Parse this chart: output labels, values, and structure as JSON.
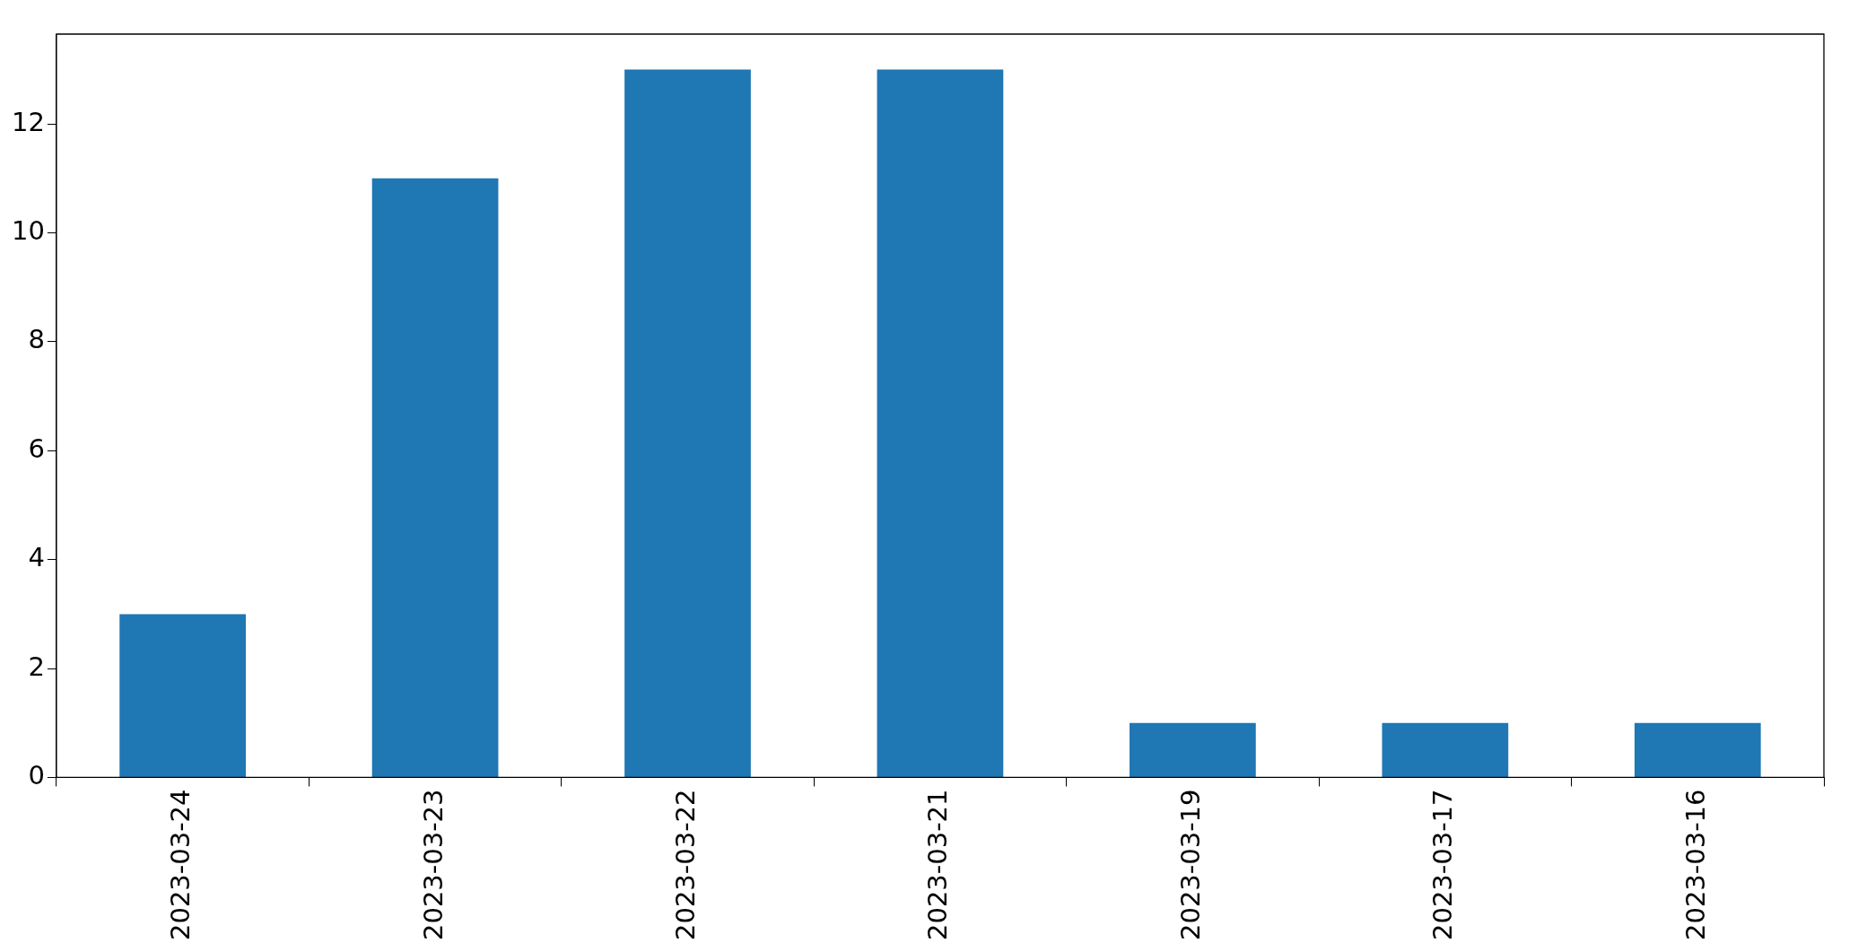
{
  "chart_data": {
    "type": "bar",
    "categories": [
      "2023-03-24",
      "2023-03-23",
      "2023-03-22",
      "2023-03-21",
      "2023-03-19",
      "2023-03-17",
      "2023-03-16"
    ],
    "values": [
      3,
      11,
      13,
      13,
      1,
      1,
      1
    ],
    "color": "#1f77b4",
    "ylim": [
      0,
      13.65
    ],
    "yticks": [
      0,
      2,
      4,
      6,
      8,
      10,
      12
    ],
    "grid": false,
    "legend": false
  }
}
